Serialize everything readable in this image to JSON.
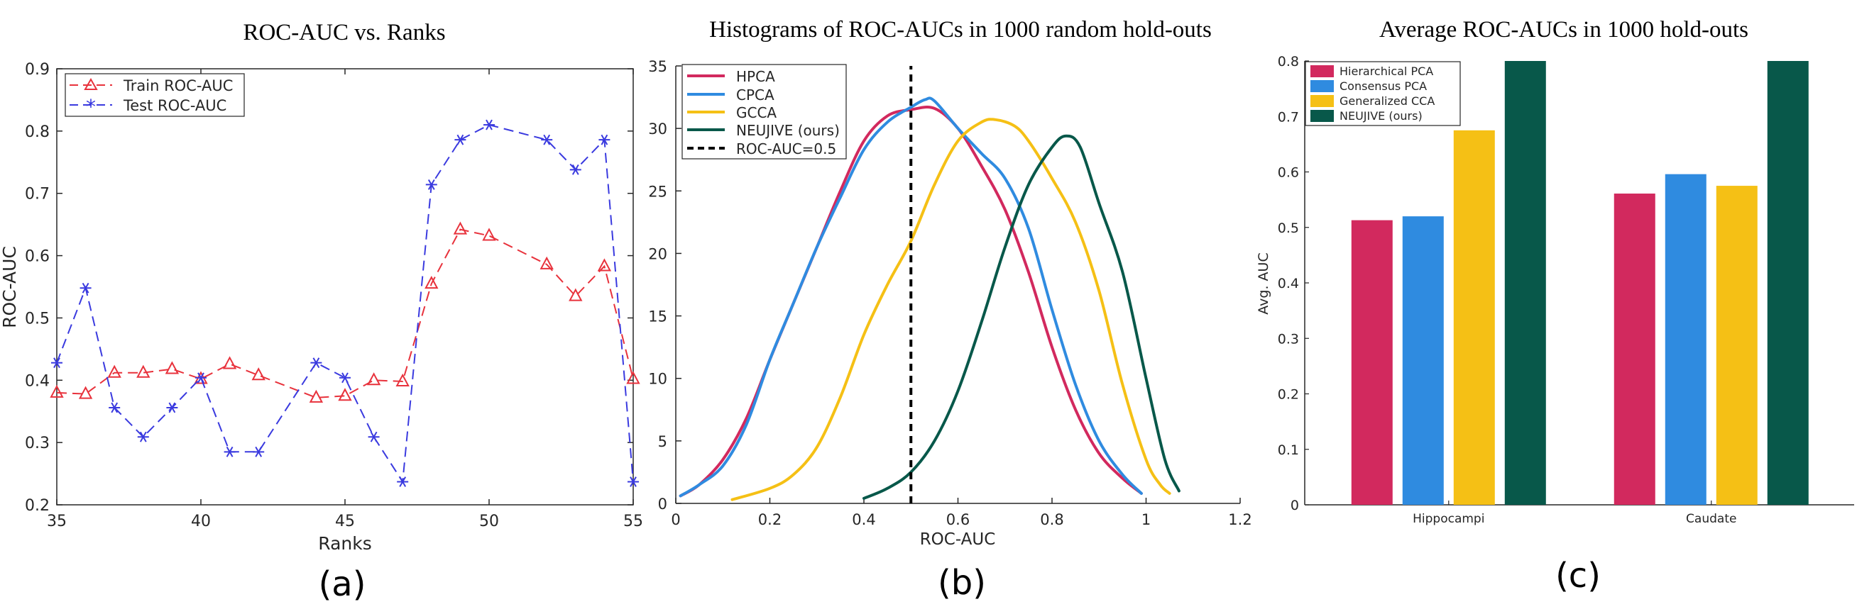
{
  "colors": {
    "train": "#e8323c",
    "test": "#3a3adf",
    "hpca": "#d2295e",
    "cpca": "#2f8be0",
    "gcca": "#f5c015",
    "neujive": "#08584a",
    "axis": "#262626",
    "grid": "#bfbfbf"
  },
  "chart_data": [
    {
      "type": "line",
      "title": "ROC-AUC vs. Ranks",
      "xlabel": "Ranks",
      "ylabel": "ROC-AUC",
      "xlim": [
        35,
        55
      ],
      "ylim": [
        0.2,
        0.9
      ],
      "xticks": [
        "35",
        "40",
        "45",
        "50",
        "55"
      ],
      "xtick_values": [
        35,
        40,
        45,
        50,
        55
      ],
      "yticks": [
        "0.2",
        "0.3",
        "0.4",
        "0.5",
        "0.6",
        "0.7",
        "0.8",
        "0.9"
      ],
      "ytick_values": [
        0.2,
        0.3,
        0.4,
        0.5,
        0.6,
        0.7,
        0.8,
        0.9
      ],
      "legend_position": "top-left",
      "panel_label": "(a)",
      "series": [
        {
          "name": "Train ROC-AUC",
          "marker": "triangle",
          "color_key": "train",
          "x": [
            35,
            36,
            37,
            38,
            39,
            40,
            41,
            42,
            44,
            45,
            46,
            47,
            48,
            49,
            50,
            52,
            53,
            54,
            55
          ],
          "y": [
            0.38,
            0.378,
            0.412,
            0.412,
            0.418,
            0.402,
            0.426,
            0.408,
            0.372,
            0.375,
            0.4,
            0.398,
            0.555,
            0.642,
            0.632,
            0.586,
            0.535,
            0.583,
            0.402
          ]
        },
        {
          "name": "Test ROC-AUC",
          "marker": "asterisk",
          "color_key": "test",
          "x": [
            35,
            36,
            37,
            38,
            39,
            40,
            41,
            42,
            44,
            45,
            46,
            47,
            48,
            49,
            50,
            52,
            53,
            54,
            55
          ],
          "y": [
            0.428,
            0.548,
            0.356,
            0.309,
            0.356,
            0.404,
            0.285,
            0.285,
            0.428,
            0.404,
            0.309,
            0.237,
            0.714,
            0.786,
            0.81,
            0.786,
            0.738,
            0.786,
            0.237
          ]
        }
      ]
    },
    {
      "type": "line",
      "title": "Histograms of ROC-AUCs in 1000 random hold-outs",
      "xlabel": "ROC-AUC",
      "ylabel": "",
      "xlim": [
        0,
        1.2
      ],
      "ylim": [
        0,
        35
      ],
      "xticks": [
        "0",
        "0.2",
        "0.4",
        "0.6",
        "0.8",
        "1",
        "1.2"
      ],
      "xtick_values": [
        0,
        0.2,
        0.4,
        0.6,
        0.8,
        1.0,
        1.2
      ],
      "yticks": [
        "0",
        "5",
        "10",
        "15",
        "20",
        "25",
        "30",
        "35"
      ],
      "ytick_values": [
        0,
        5,
        10,
        15,
        20,
        25,
        30,
        35
      ],
      "legend_position": "top-left",
      "panel_label": "(b)",
      "series": [
        {
          "name": "HPCA",
          "color_key": "hpca",
          "x": [
            0.01,
            0.05,
            0.1,
            0.15,
            0.2,
            0.25,
            0.3,
            0.35,
            0.4,
            0.45,
            0.5,
            0.55,
            0.6,
            0.65,
            0.7,
            0.75,
            0.8,
            0.85,
            0.9,
            0.95,
            0.99
          ],
          "y": [
            0.6,
            1.5,
            3.5,
            6.8,
            11.5,
            16.0,
            20.5,
            25.0,
            29.0,
            31.0,
            31.5,
            31.6,
            30.0,
            27.0,
            23.5,
            18.5,
            12.5,
            7.5,
            4.0,
            2.0,
            0.8
          ]
        },
        {
          "name": "CPCA",
          "color_key": "cpca",
          "x": [
            0.01,
            0.05,
            0.1,
            0.15,
            0.2,
            0.25,
            0.3,
            0.35,
            0.4,
            0.45,
            0.5,
            0.53,
            0.55,
            0.6,
            0.65,
            0.7,
            0.75,
            0.8,
            0.85,
            0.9,
            0.95,
            0.99
          ],
          "y": [
            0.6,
            1.5,
            3.0,
            6.3,
            11.5,
            16.0,
            20.5,
            24.5,
            28.3,
            30.5,
            31.7,
            32.3,
            32.2,
            30.0,
            28.0,
            26.0,
            22.0,
            15.5,
            9.5,
            5.0,
            2.3,
            0.8
          ]
        },
        {
          "name": "GCCA",
          "color_key": "gcca",
          "x": [
            0.12,
            0.2,
            0.25,
            0.3,
            0.35,
            0.4,
            0.45,
            0.5,
            0.55,
            0.6,
            0.65,
            0.68,
            0.72,
            0.75,
            0.8,
            0.85,
            0.9,
            0.95,
            1.0,
            1.03,
            1.05
          ],
          "y": [
            0.3,
            1.2,
            2.3,
            4.5,
            8.5,
            13.5,
            17.5,
            21.0,
            25.5,
            29.0,
            30.5,
            30.7,
            30.2,
            29.0,
            26.0,
            22.5,
            17.0,
            9.5,
            3.5,
            1.5,
            0.8
          ]
        },
        {
          "name": "NEUJIVE (ours)",
          "color_key": "neujive",
          "x": [
            0.4,
            0.45,
            0.5,
            0.55,
            0.6,
            0.65,
            0.7,
            0.75,
            0.8,
            0.83,
            0.86,
            0.9,
            0.95,
            1.0,
            1.04,
            1.07
          ],
          "y": [
            0.4,
            1.2,
            2.5,
            5.0,
            9.0,
            14.5,
            20.5,
            25.5,
            28.5,
            29.4,
            28.5,
            24.0,
            18.5,
            10.0,
            3.5,
            1.0
          ]
        },
        {
          "name": "ROC-AUC=0.5",
          "color_key": "axis",
          "style": "dashed",
          "x": [
            0.5,
            0.5
          ],
          "y": [
            0,
            35
          ]
        }
      ]
    },
    {
      "type": "bar",
      "title": "Average ROC-AUCs in 1000 hold-outs",
      "xlabel": "",
      "ylabel": "Avg. AUC",
      "ylim": [
        0,
        0.8
      ],
      "yticks": [
        "0",
        "0.1",
        "0.2",
        "0.3",
        "0.4",
        "0.5",
        "0.6",
        "0.7",
        "0.8"
      ],
      "ytick_values": [
        0,
        0.1,
        0.2,
        0.3,
        0.4,
        0.5,
        0.6,
        0.7,
        0.8
      ],
      "categories": [
        "Hippocampi",
        "Caudate"
      ],
      "legend_position": "top-left",
      "panel_label": "(c)",
      "series": [
        {
          "name": "Hierarchical PCA",
          "color_key": "hpca",
          "values": [
            0.513,
            0.561
          ]
        },
        {
          "name": "Consensus PCA",
          "color_key": "cpca",
          "values": [
            0.52,
            0.596
          ]
        },
        {
          "name": "Generalized CCA",
          "color_key": "gcca",
          "values": [
            0.675,
            0.575
          ]
        },
        {
          "name": "NEUJIVE (ours)",
          "color_key": "neujive",
          "values": [
            0.8,
            0.8
          ]
        }
      ]
    }
  ]
}
